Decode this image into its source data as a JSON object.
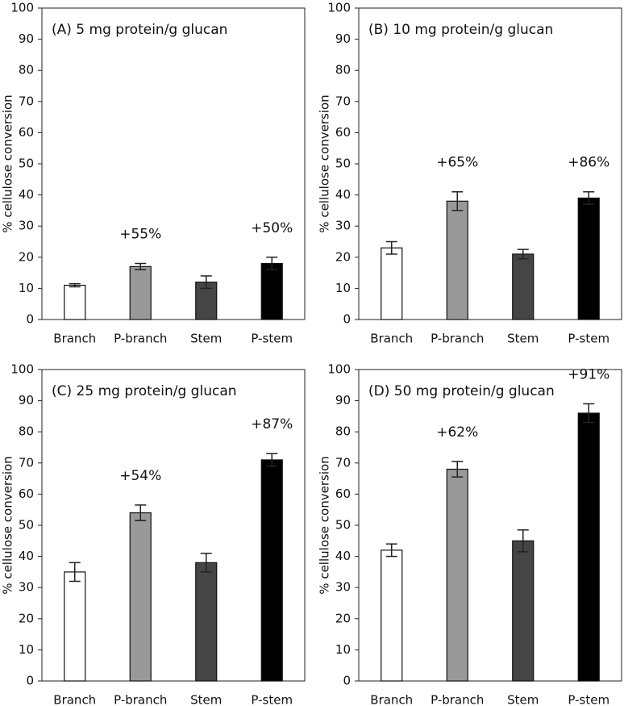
{
  "chart_data": [
    {
      "type": "bar",
      "title": "(A) 5 mg protein/g glucan",
      "y_label": "% cellulose conversion",
      "categories": [
        "Branch",
        "P-branch",
        "Stem",
        "P-stem"
      ],
      "values": [
        11,
        17,
        12,
        18
      ],
      "errors": [
        0.5,
        1,
        2,
        2
      ],
      "colors": [
        "#ffffff",
        "#999999",
        "#454545",
        "#000000"
      ],
      "annotations": [
        null,
        "+55%",
        null,
        "+50%"
      ],
      "ylim": [
        0,
        100
      ],
      "yticks": [
        0,
        10,
        20,
        30,
        40,
        50,
        60,
        70,
        80,
        90,
        100
      ]
    },
    {
      "type": "bar",
      "title": "(B) 10 mg protein/g glucan",
      "y_label": "% cellulose conversion",
      "categories": [
        "Branch",
        "P-branch",
        "Stem",
        "P-stem"
      ],
      "values": [
        23,
        38,
        21,
        39
      ],
      "errors": [
        2,
        3,
        1.5,
        2
      ],
      "colors": [
        "#ffffff",
        "#999999",
        "#454545",
        "#000000"
      ],
      "annotations": [
        null,
        "+65%",
        null,
        "+86%"
      ],
      "ylim": [
        0,
        100
      ],
      "yticks": [
        0,
        10,
        20,
        30,
        40,
        50,
        60,
        70,
        80,
        90,
        100
      ]
    },
    {
      "type": "bar",
      "title": "(C) 25 mg protein/g glucan",
      "y_label": "% cellulose conversion",
      "categories": [
        "Branch",
        "P-branch",
        "Stem",
        "P-stem"
      ],
      "values": [
        35,
        54,
        38,
        71
      ],
      "errors": [
        3,
        2.5,
        3,
        2
      ],
      "colors": [
        "#ffffff",
        "#999999",
        "#454545",
        "#000000"
      ],
      "annotations": [
        null,
        "+54%",
        null,
        "+87%"
      ],
      "ylim": [
        0,
        100
      ],
      "yticks": [
        0,
        10,
        20,
        30,
        40,
        50,
        60,
        70,
        80,
        90,
        100
      ]
    },
    {
      "type": "bar",
      "title": "(D) 50 mg protein/g glucan",
      "y_label": "% cellulose conversion",
      "categories": [
        "Branch",
        "P-branch",
        "Stem",
        "P-stem"
      ],
      "values": [
        42,
        68,
        45,
        86
      ],
      "errors": [
        2,
        2.5,
        3.5,
        3
      ],
      "colors": [
        "#ffffff",
        "#999999",
        "#454545",
        "#000000"
      ],
      "annotations": [
        null,
        "+62%",
        null,
        "+91%"
      ],
      "ylim": [
        0,
        100
      ],
      "yticks": [
        0,
        10,
        20,
        30,
        40,
        50,
        60,
        70,
        80,
        90,
        100
      ]
    }
  ]
}
